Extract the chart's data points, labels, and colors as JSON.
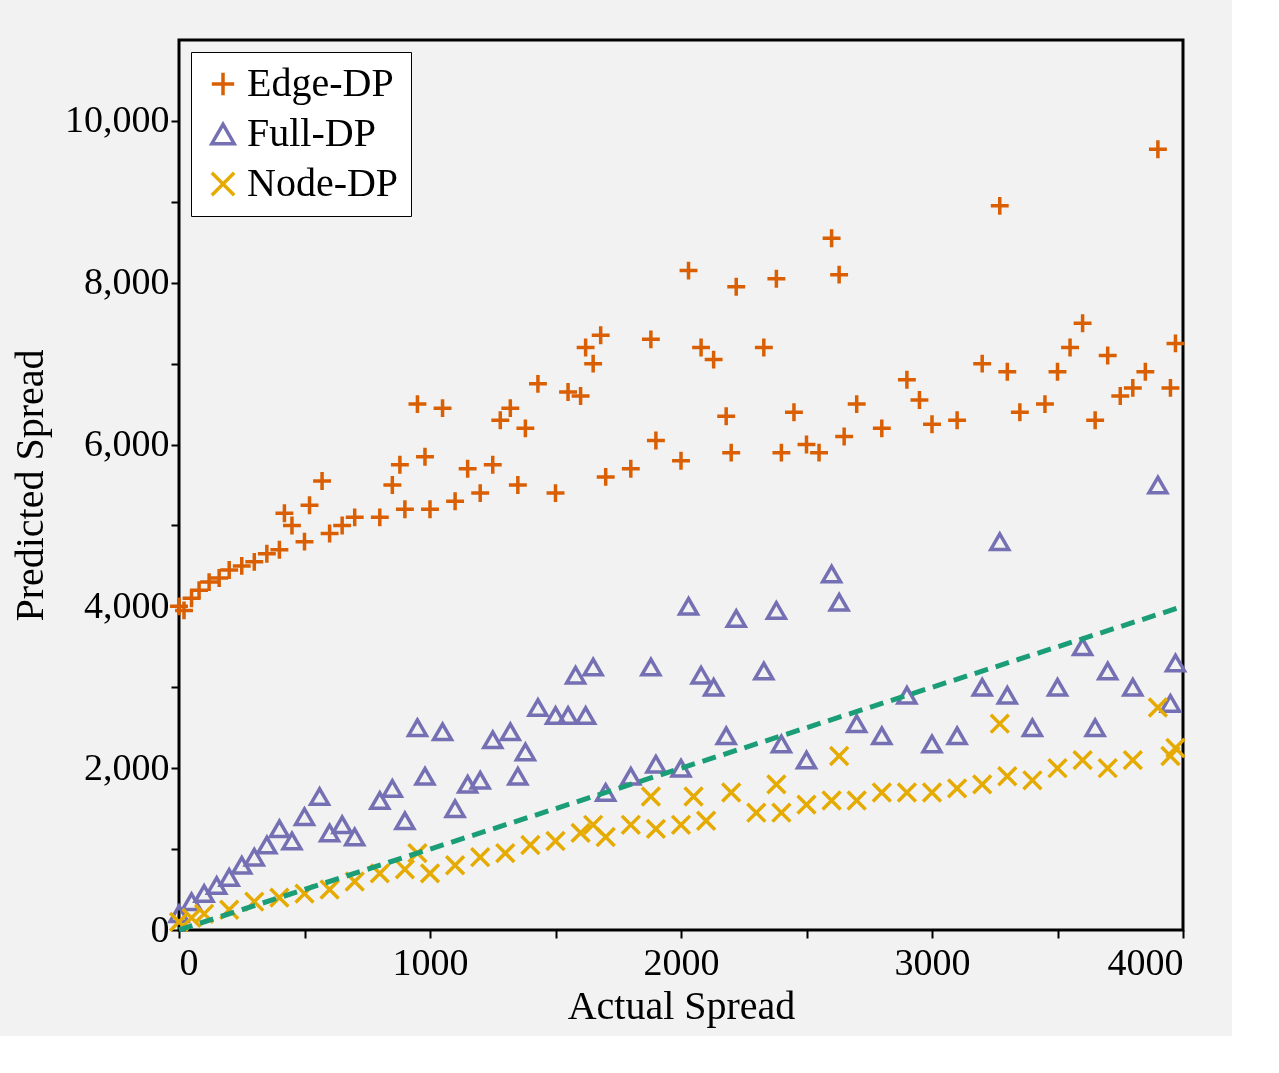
{
  "chart_data": {
    "type": "scatter",
    "xlabel": "Actual Spread",
    "ylabel": "Predicted Spread",
    "xlim": [
      0,
      4000
    ],
    "ylim": [
      0,
      11000
    ],
    "xticks": [
      0,
      {
        "value": 500,
        "label": null
      },
      1000,
      {
        "value": 1500,
        "label": null
      },
      2000,
      {
        "value": 2500,
        "label": null
      },
      3000,
      {
        "value": 3500,
        "label": null
      },
      4000
    ],
    "yticks": [
      0,
      {
        "value": 1000,
        "label": null
      },
      {
        "value": 2000,
        "label": "2,000"
      },
      {
        "value": 3000,
        "label": null
      },
      {
        "value": 4000,
        "label": "4,000"
      },
      {
        "value": 5000,
        "label": null
      },
      {
        "value": 6000,
        "label": "6,000"
      },
      {
        "value": 7000,
        "label": null
      },
      {
        "value": 8000,
        "label": "8,000"
      },
      {
        "value": 9000,
        "label": null
      },
      {
        "value": 10000,
        "label": "10,000"
      }
    ],
    "grid": false,
    "legend": "top left",
    "series": [
      {
        "name": "Edge-DP",
        "color": "#d95f02",
        "marker": "cross",
        "x": [
          0,
          20,
          50,
          80,
          120,
          160,
          200,
          250,
          300,
          350,
          400,
          420,
          450,
          500,
          520,
          570,
          600,
          650,
          700,
          800,
          850,
          880,
          900,
          950,
          980,
          1000,
          1050,
          1100,
          1150,
          1200,
          1250,
          1280,
          1320,
          1350,
          1380,
          1430,
          1500,
          1550,
          1600,
          1620,
          1650,
          1680,
          1700,
          1800,
          1880,
          1900,
          2000,
          2030,
          2080,
          2130,
          2180,
          2200,
          2220,
          2330,
          2380,
          2400,
          2450,
          2500,
          2550,
          2600,
          2630,
          2650,
          2700,
          2800,
          2900,
          2950,
          3000,
          3100,
          3200,
          3270,
          3300,
          3350,
          3450,
          3500,
          3550,
          3600,
          3650,
          3700,
          3750,
          3800,
          3850,
          3900,
          3950,
          3970
        ],
        "values": [
          4000,
          3950,
          4100,
          4200,
          4300,
          4350,
          4450,
          4500,
          4550,
          4650,
          4700,
          5150,
          5000,
          4800,
          5250,
          5550,
          4900,
          5000,
          5100,
          5100,
          5500,
          5750,
          5200,
          6500,
          5850,
          5200,
          6450,
          5300,
          5700,
          5400,
          5750,
          6300,
          6450,
          5500,
          6200,
          6750,
          5400,
          6650,
          6600,
          7200,
          7000,
          7350,
          5600,
          5700,
          7300,
          6050,
          5800,
          8150,
          7200,
          7050,
          6350,
          5900,
          7950,
          7200,
          8050,
          5900,
          6400,
          6000,
          5900,
          8550,
          8100,
          6100,
          6500,
          6200,
          6800,
          6550,
          6250,
          6300,
          7000,
          8950,
          6900,
          6400,
          6500,
          6900,
          7200,
          7500,
          6300,
          7100,
          6600,
          6700,
          6900,
          9650,
          6700,
          7250
        ]
      },
      {
        "name": "Full-DP",
        "color": "#7570b3",
        "marker": "triangle",
        "x": [
          0,
          50,
          100,
          150,
          200,
          250,
          300,
          350,
          400,
          450,
          500,
          560,
          600,
          650,
          700,
          800,
          850,
          900,
          950,
          980,
          1050,
          1100,
          1150,
          1200,
          1250,
          1320,
          1350,
          1380,
          1430,
          1500,
          1550,
          1580,
          1620,
          1650,
          1700,
          1800,
          1880,
          1900,
          2000,
          2030,
          2080,
          2130,
          2180,
          2220,
          2330,
          2380,
          2400,
          2500,
          2600,
          2630,
          2700,
          2800,
          2900,
          3000,
          3100,
          3200,
          3270,
          3300,
          3400,
          3500,
          3600,
          3650,
          3700,
          3800,
          3900,
          3950,
          3970
        ],
        "values": [
          200,
          350,
          450,
          550,
          650,
          800,
          900,
          1050,
          1250,
          1100,
          1400,
          1650,
          1200,
          1300,
          1150,
          1600,
          1750,
          1350,
          2500,
          1900,
          2450,
          1500,
          1800,
          1850,
          2350,
          2450,
          1900,
          2200,
          2750,
          2650,
          2650,
          3150,
          2650,
          3250,
          1700,
          1900,
          3250,
          2050,
          2000,
          4000,
          3150,
          3000,
          2400,
          3850,
          3200,
          3950,
          2300,
          2100,
          4400,
          4050,
          2550,
          2400,
          2900,
          2300,
          2400,
          3000,
          4800,
          2900,
          2500,
          3000,
          3500,
          2500,
          3200,
          3000,
          5500,
          2800,
          3300
        ]
      },
      {
        "name": "Node-DP",
        "color": "#e6ab02",
        "marker": "x",
        "x": [
          0,
          50,
          100,
          200,
          300,
          400,
          500,
          600,
          700,
          800,
          900,
          950,
          1000,
          1100,
          1200,
          1300,
          1400,
          1500,
          1600,
          1650,
          1700,
          1800,
          1880,
          1900,
          2000,
          2050,
          2100,
          2200,
          2300,
          2380,
          2400,
          2500,
          2600,
          2630,
          2700,
          2800,
          2900,
          3000,
          3100,
          3200,
          3270,
          3300,
          3400,
          3500,
          3600,
          3700,
          3800,
          3900,
          3950,
          3970
        ],
        "values": [
          100,
          150,
          200,
          250,
          350,
          400,
          450,
          500,
          600,
          700,
          750,
          950,
          700,
          800,
          900,
          950,
          1050,
          1100,
          1200,
          1300,
          1150,
          1300,
          1650,
          1250,
          1300,
          1650,
          1350,
          1700,
          1450,
          1800,
          1450,
          1550,
          1600,
          2150,
          1600,
          1700,
          1700,
          1700,
          1750,
          1800,
          2550,
          1900,
          1850,
          2000,
          2100,
          2000,
          2100,
          2750,
          2150,
          2250
        ]
      },
      {
        "type": "line",
        "color": "#1b9e77",
        "line_style": "dashed",
        "marker": "none",
        "x": [
          0,
          4000
        ],
        "values": [
          0,
          4000
        ]
      }
    ]
  }
}
